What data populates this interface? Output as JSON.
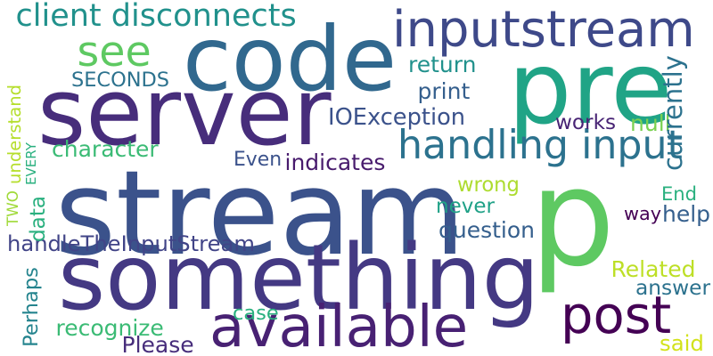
{
  "words": [
    {
      "id": "p",
      "text": "p",
      "color": "#5ec962",
      "rot": 0
    },
    {
      "id": "stream",
      "text": "stream",
      "color": "#3b528b",
      "rot": 0
    },
    {
      "id": "something",
      "text": "something",
      "color": "#443983",
      "rot": 0
    },
    {
      "id": "code",
      "text": "code",
      "color": "#31688e",
      "rot": 0
    },
    {
      "id": "server",
      "text": "server",
      "color": "#472d7b",
      "rot": 0
    },
    {
      "id": "pre",
      "text": "pre",
      "color": "#20a486",
      "rot": 0
    },
    {
      "id": "inputstream",
      "text": "inputstream",
      "color": "#3e4989",
      "rot": 0
    },
    {
      "id": "available",
      "text": "available",
      "color": "#482173",
      "rot": 0
    },
    {
      "id": "post",
      "text": "post",
      "color": "#440154",
      "rot": 0
    },
    {
      "id": "handling-input",
      "text": "handling input",
      "color": "#2c728e",
      "rot": 0
    },
    {
      "id": "see",
      "text": "see",
      "color": "#5ec962",
      "rot": 0
    },
    {
      "id": "client-disconnects",
      "text": "client disconnects",
      "color": "#21918c",
      "rot": 0
    },
    {
      "id": "IOException",
      "text": "IOException",
      "color": "#3b528b",
      "rot": 0
    },
    {
      "id": "handleTheInputStream",
      "text": "handleTheInputStream",
      "color": "#414487",
      "rot": 0
    },
    {
      "id": "question",
      "text": "question",
      "color": "#355f8d",
      "rot": 0
    },
    {
      "id": "SECONDS",
      "text": "SECONDS",
      "color": "#2c728e",
      "rot": 0
    },
    {
      "id": "character",
      "text": "character",
      "color": "#3bbb75",
      "rot": 0
    },
    {
      "id": "indicates",
      "text": "indicates",
      "color": "#481b6d",
      "rot": 0
    },
    {
      "id": "Even",
      "text": "Even",
      "color": "#3b528b",
      "rot": 0
    },
    {
      "id": "return",
      "text": "return",
      "color": "#21918c",
      "rot": 0
    },
    {
      "id": "print",
      "text": "print",
      "color": "#355f8d",
      "rot": 0
    },
    {
      "id": "works",
      "text": "works",
      "color": "#482475",
      "rot": 0
    },
    {
      "id": "null",
      "text": "null",
      "color": "#7ad151",
      "rot": 0
    },
    {
      "id": "wrong",
      "text": "wrong",
      "color": "#addc30",
      "rot": 0
    },
    {
      "id": "never",
      "text": "never",
      "color": "#1fa187",
      "rot": 0
    },
    {
      "id": "End",
      "text": "End",
      "color": "#2ab07f",
      "rot": 0
    },
    {
      "id": "way",
      "text": "way",
      "color": "#440154",
      "rot": 0
    },
    {
      "id": "help",
      "text": "help",
      "color": "#355f8d",
      "rot": 0
    },
    {
      "id": "Related",
      "text": "Related",
      "color": "#bddf26",
      "rot": 0
    },
    {
      "id": "answer",
      "text": "answer",
      "color": "#2c728e",
      "rot": 0
    },
    {
      "id": "case",
      "text": "case",
      "color": "#2ab07f",
      "rot": 0
    },
    {
      "id": "recognize",
      "text": "recognize",
      "color": "#3bbb75",
      "rot": 0
    },
    {
      "id": "Please",
      "text": "Please",
      "color": "#472d7b",
      "rot": 0
    },
    {
      "id": "said",
      "text": "said",
      "color": "#d2e21b",
      "rot": 0
    },
    {
      "id": "currently",
      "text": "currently",
      "color": "#2c728e",
      "rot": -90
    },
    {
      "id": "understand",
      "text": "understand",
      "color": "#b5de2b",
      "rot": -90
    },
    {
      "id": "EVERY",
      "text": "EVERY",
      "color": "#2ab07f",
      "rot": -90
    },
    {
      "id": "TWO",
      "text": "TWO",
      "color": "#a0da39",
      "rot": -90
    },
    {
      "id": "data",
      "text": "data",
      "color": "#2ab07f",
      "rot": -90
    },
    {
      "id": "Perhaps",
      "text": "Perhaps",
      "color": "#25848e",
      "rot": -90
    }
  ]
}
